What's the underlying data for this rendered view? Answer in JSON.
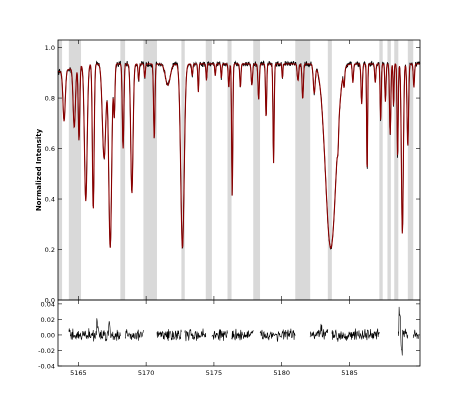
{
  "chart_data": [
    {
      "type": "line",
      "title": "",
      "xlabel": "",
      "ylabel": "Normalized Intensity",
      "xlim": [
        5163.5,
        5190.2
      ],
      "ylim": [
        0.0,
        1.03
      ],
      "yticks": [
        "0.0",
        "0.2",
        "0.4",
        "0.6",
        "0.8",
        "1.0"
      ],
      "ytick_values": [
        0.0,
        0.2,
        0.4,
        0.6,
        0.8,
        1.0
      ],
      "grid": false,
      "legend": "none",
      "masked_regions": [
        [
          5163.5,
          5163.8
        ],
        [
          5164.3,
          5165.2
        ],
        [
          5168.1,
          5168.45
        ],
        [
          5169.8,
          5170.8
        ],
        [
          5172.6,
          5172.85
        ],
        [
          5174.4,
          5174.85
        ],
        [
          5176.0,
          5176.3
        ],
        [
          5177.9,
          5178.4
        ],
        [
          5181.0,
          5182.1
        ],
        [
          5183.4,
          5183.7
        ],
        [
          5187.2,
          5187.45
        ],
        [
          5187.8,
          5188.05
        ],
        [
          5188.3,
          5188.6
        ],
        [
          5189.3,
          5189.7
        ]
      ],
      "mask_color": "#d9d9d9",
      "series": [
        {
          "style": "observed",
          "color": "#000000",
          "continuum": 0.935,
          "lines": [
            [
              5163.95,
              0.22,
              0.12
            ],
            [
              5164.7,
              0.26,
              0.12
            ],
            [
              5165.05,
              0.32,
              0.08
            ],
            [
              5165.55,
              0.58,
              0.14
            ],
            [
              5166.1,
              0.62,
              0.09
            ],
            [
              5166.9,
              0.4,
              0.18
            ],
            [
              5167.35,
              0.78,
              0.15
            ],
            [
              5167.65,
              0.22,
              0.07
            ],
            [
              5168.3,
              0.36,
              0.08
            ],
            [
              5168.95,
              0.55,
              0.12
            ],
            [
              5169.45,
              0.07,
              0.06
            ],
            [
              5169.9,
              0.06,
              0.06
            ],
            [
              5170.6,
              0.32,
              0.07
            ],
            [
              5171.6,
              0.09,
              0.25
            ],
            [
              5172.68,
              0.78,
              0.18
            ],
            [
              5173.4,
              0.05,
              0.06
            ],
            [
              5173.85,
              0.12,
              0.05
            ],
            [
              5174.45,
              0.07,
              0.05
            ],
            [
              5175.1,
              0.05,
              0.05
            ],
            [
              5175.55,
              0.06,
              0.05
            ],
            [
              5176.1,
              0.1,
              0.06
            ],
            [
              5176.35,
              0.56,
              0.06
            ],
            [
              5176.95,
              0.1,
              0.06
            ],
            [
              5177.8,
              0.09,
              0.07
            ],
            [
              5178.3,
              0.15,
              0.07
            ],
            [
              5178.85,
              0.23,
              0.06
            ],
            [
              5179.4,
              0.42,
              0.06
            ],
            [
              5180.05,
              0.06,
              0.05
            ],
            [
              5181.2,
              0.07,
              0.08
            ],
            [
              5181.55,
              0.15,
              0.07
            ],
            [
              5182.4,
              0.12,
              0.1
            ],
            [
              5183.62,
              0.78,
              0.55
            ],
            [
              5184.15,
              0.1,
              0.06
            ],
            [
              5184.6,
              0.07,
              0.06
            ],
            [
              5185.25,
              0.08,
              0.06
            ],
            [
              5185.9,
              0.17,
              0.07
            ],
            [
              5186.3,
              0.47,
              0.05
            ],
            [
              5186.9,
              0.08,
              0.06
            ],
            [
              5187.3,
              0.24,
              0.06
            ],
            [
              5187.65,
              0.16,
              0.06
            ],
            [
              5188.0,
              0.3,
              0.07
            ],
            [
              5188.25,
              0.18,
              0.05
            ],
            [
              5188.55,
              0.4,
              0.06
            ],
            [
              5188.9,
              0.72,
              0.1
            ],
            [
              5189.3,
              0.35,
              0.08
            ],
            [
              5189.75,
              0.1,
              0.06
            ]
          ]
        },
        {
          "style": "model",
          "color": "#8b0000",
          "same_lines_as": "observed"
        }
      ]
    },
    {
      "type": "line",
      "title": "",
      "xlabel": "",
      "ylabel": "",
      "xlim": [
        5163.5,
        5190.2
      ],
      "ylim": [
        -0.04,
        0.045
      ],
      "xticks": [
        "5165",
        "5170",
        "5175",
        "5180",
        "5185"
      ],
      "xtick_values": [
        5165,
        5170,
        5175,
        5180,
        5185
      ],
      "yticks": [
        "-0.04",
        "-0.02",
        "0.00",
        "0.02",
        "0.04"
      ],
      "ytick_values": [
        -0.04,
        -0.02,
        0.0,
        0.02,
        0.04
      ],
      "grid": false,
      "legend": "none",
      "series": [
        {
          "style": "residual",
          "color": "#000000",
          "noise": 0.006,
          "segments": [
            [
              5164.3,
              5168.1
            ],
            [
              5168.45,
              5169.8
            ],
            [
              5170.8,
              5172.6
            ],
            [
              5172.85,
              5174.4
            ],
            [
              5174.85,
              5176.0
            ],
            [
              5176.3,
              5177.9
            ],
            [
              5178.4,
              5181.0
            ],
            [
              5182.1,
              5183.4
            ],
            [
              5183.7,
              5187.2
            ],
            [
              5188.6,
              5189.3
            ],
            [
              5189.7,
              5190.1
            ]
          ],
          "spikes": [
            [
              5166.4,
              0.016
            ],
            [
              5167.3,
              0.014
            ],
            [
              5182.9,
              0.01
            ],
            [
              5188.7,
              0.028
            ],
            [
              5188.85,
              -0.018
            ]
          ]
        }
      ]
    }
  ]
}
